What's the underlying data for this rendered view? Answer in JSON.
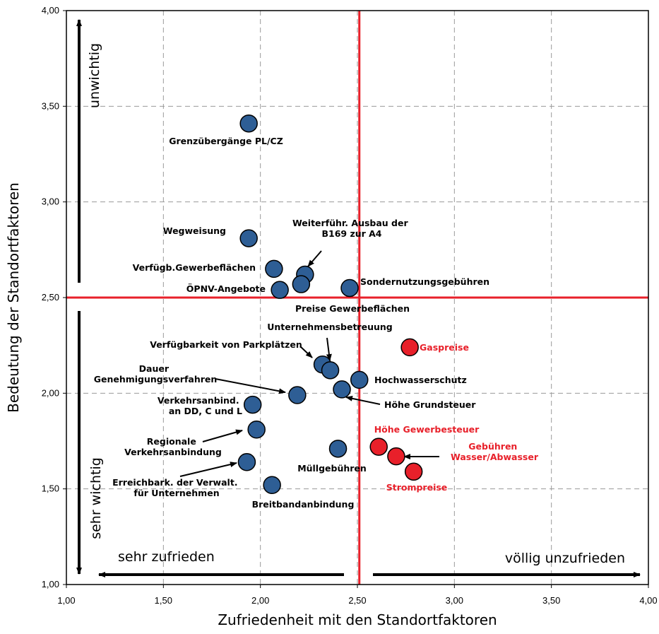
{
  "chart_data": {
    "type": "scatter",
    "xlabel": "Zufriedenheit mit den Standortfaktoren",
    "ylabel": "Bedeutung der Standortfaktoren",
    "xlim": [
      1.0,
      4.0
    ],
    "ylim": [
      1.0,
      4.0
    ],
    "x_ticks": [
      "1,00",
      "1,50",
      "2,00",
      "2,50",
      "3,00",
      "3,50",
      "4,00"
    ],
    "y_ticks": [
      "1,00",
      "1,50",
      "2,00",
      "2,50",
      "3,00",
      "3,50",
      "4,00"
    ],
    "grid": true,
    "reference_lines": {
      "x": 2.51,
      "y": 2.5,
      "color": "#e8202a"
    },
    "annotations": {
      "unwichtig": "unwichtig",
      "sehr_wichtig": "sehr wichtig",
      "sehr_zufrieden": "sehr zufrieden",
      "voellig_unzufrieden": "völlig unzufrieden"
    },
    "colors": {
      "default": "#2e5e95",
      "highlight": "#e8202a",
      "reference": "#e8202a"
    },
    "points": [
      {
        "label": "Grenzübergänge PL/CZ",
        "x": 1.94,
        "y": 3.41,
        "color": "#2e5e95"
      },
      {
        "label": "Wegweisung",
        "x": 1.94,
        "y": 2.81,
        "color": "#2e5e95"
      },
      {
        "label": "Verfügb.Gewerbeflächen",
        "x": 2.07,
        "y": 2.65,
        "color": "#2e5e95"
      },
      {
        "label": "Weiterführ. Ausbau der B169 zur A4",
        "x": 2.23,
        "y": 2.62,
        "color": "#2e5e95"
      },
      {
        "label": "Preise Gewerbeflächen",
        "x": 2.21,
        "y": 2.57,
        "color": "#2e5e95"
      },
      {
        "label": "ÖPNV-Angebote",
        "x": 2.1,
        "y": 2.54,
        "color": "#2e5e95"
      },
      {
        "label": "Sondernutzungsgebühren",
        "x": 2.46,
        "y": 2.55,
        "color": "#2e5e95"
      },
      {
        "label": "Verfügbarkeit von Parkplätzen",
        "x": 2.32,
        "y": 2.15,
        "color": "#2e5e95"
      },
      {
        "label": "Unternehmensbetreuung",
        "x": 2.36,
        "y": 2.12,
        "color": "#2e5e95"
      },
      {
        "label": "Hochwasserschutz",
        "x": 2.51,
        "y": 2.07,
        "color": "#2e5e95"
      },
      {
        "label": "Höhe Grundsteuer",
        "x": 2.42,
        "y": 2.02,
        "color": "#2e5e95"
      },
      {
        "label": "Dauer Genehmigungsverfahren",
        "x": 2.19,
        "y": 1.99,
        "color": "#2e5e95"
      },
      {
        "label": "Verkehrsanbind. an DD, C und L",
        "x": 1.96,
        "y": 1.94,
        "color": "#2e5e95"
      },
      {
        "label": "Regionale Verkehrsanbindung",
        "x": 1.98,
        "y": 1.81,
        "color": "#2e5e95"
      },
      {
        "label": "Müllgebühren",
        "x": 2.4,
        "y": 1.71,
        "color": "#2e5e95"
      },
      {
        "label": "Erreichbark. der Verwalt. für Unternehmen",
        "x": 1.93,
        "y": 1.64,
        "color": "#2e5e95"
      },
      {
        "label": "Breitbandanbindung",
        "x": 2.06,
        "y": 1.52,
        "color": "#2e5e95"
      },
      {
        "label": "Gaspreise",
        "x": 2.77,
        "y": 2.24,
        "color": "#e8202a"
      },
      {
        "label": "Höhe Gewerbesteuer",
        "x": 2.61,
        "y": 1.72,
        "color": "#e8202a"
      },
      {
        "label": "Gebühren Wasser/Abwasser",
        "x": 2.7,
        "y": 1.67,
        "color": "#e8202a"
      },
      {
        "label": "Strompreise",
        "x": 2.79,
        "y": 1.59,
        "color": "#e8202a"
      }
    ]
  }
}
